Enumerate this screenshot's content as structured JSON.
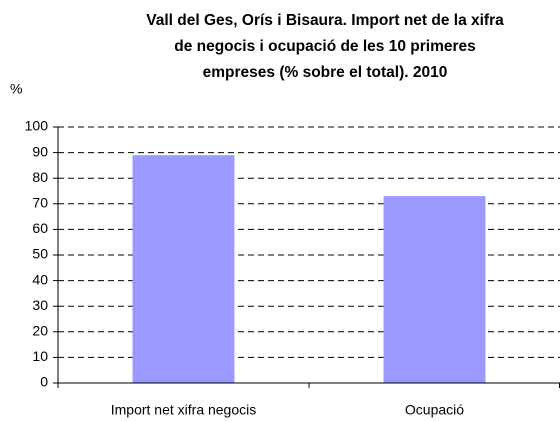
{
  "chart_data": {
    "type": "bar",
    "title": "Vall del Ges, Orís i Bisaura. Import net de la xifra de negocis i ocupació de les 10 primeres empreses (% sobre el total). 2010",
    "y_label": "%",
    "categories": [
      "Import net xifra negocis",
      "Ocupació"
    ],
    "values": [
      89,
      73
    ],
    "color": "#9999ff",
    "ylim": [
      0,
      100
    ],
    "yticks": [
      0,
      10,
      20,
      30,
      40,
      50,
      60,
      70,
      80,
      90,
      100
    ],
    "grid": true
  }
}
